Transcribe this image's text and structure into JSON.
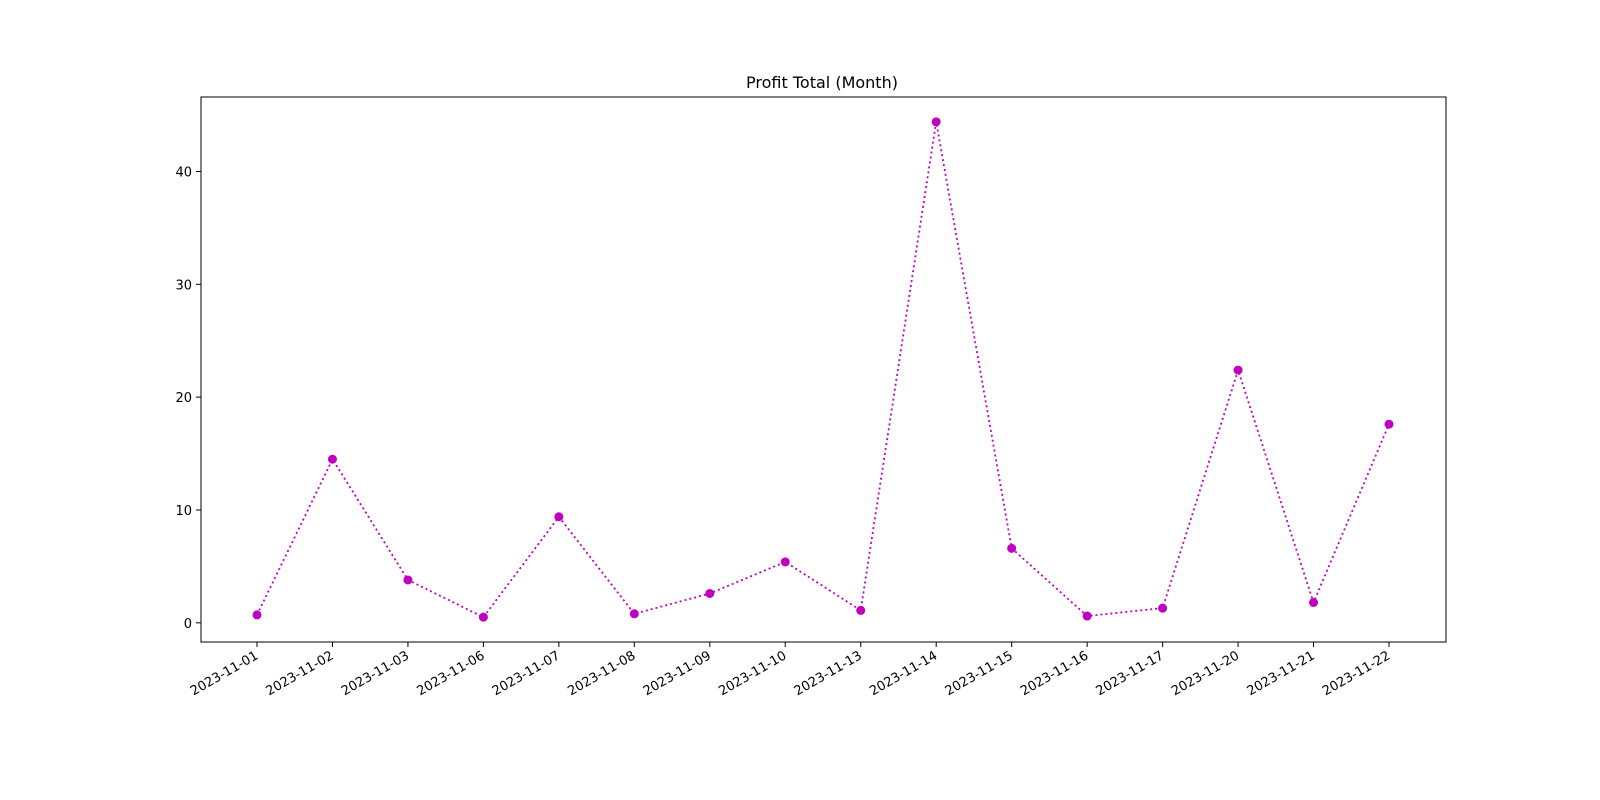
{
  "chart_data": {
    "type": "line",
    "title": "Profit Total (Month)",
    "xlabel": "",
    "ylabel": "",
    "categories": [
      "2023-11-01",
      "2023-11-02",
      "2023-11-03",
      "2023-11-06",
      "2023-11-07",
      "2023-11-08",
      "2023-11-09",
      "2023-11-10",
      "2023-11-13",
      "2023-11-14",
      "2023-11-15",
      "2023-11-16",
      "2023-11-17",
      "2023-11-20",
      "2023-11-21",
      "2023-11-22"
    ],
    "values": [
      0.7,
      14.5,
      3.8,
      0.5,
      9.4,
      0.8,
      2.6,
      5.4,
      1.1,
      44.4,
      6.6,
      0.6,
      1.3,
      22.4,
      1.8,
      17.6
    ],
    "yticks": [
      0,
      10,
      20,
      30,
      40
    ],
    "ylim": [
      -1.7,
      46.6
    ],
    "grid": false,
    "legend": "none",
    "line_style": "dotted",
    "marker": "circle",
    "color": "#bf00bf"
  }
}
